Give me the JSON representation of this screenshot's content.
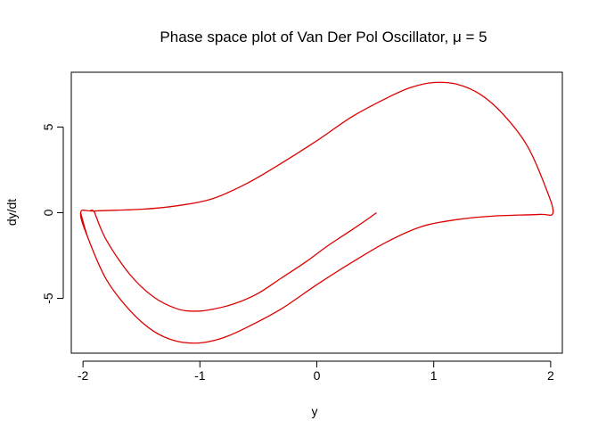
{
  "chart_data": {
    "type": "line",
    "title": "Phase space plot of Van Der Pol Oscillator, μ = 5",
    "xlabel": "y",
    "ylabel": "dy/dt",
    "xlim": [
      -2.1,
      2.1
    ],
    "ylim": [
      -8.2,
      8.2
    ],
    "xticks": [
      -2,
      -1,
      0,
      1,
      2
    ],
    "yticks": [
      -5,
      0,
      5
    ],
    "grid": false,
    "line_color": "#dd0000",
    "series": [
      {
        "values": [
          {
            "x": 0.51,
            "y": 0.0
          },
          {
            "x": 0.45,
            "y": -0.3
          },
          {
            "x": 0.3,
            "y": -1.0
          },
          {
            "x": 0.1,
            "y": -1.9
          },
          {
            "x": -0.1,
            "y": -2.9
          },
          {
            "x": -0.3,
            "y": -3.8
          },
          {
            "x": -0.5,
            "y": -4.7
          },
          {
            "x": -0.7,
            "y": -5.3
          },
          {
            "x": -0.9,
            "y": -5.65
          },
          {
            "x": -1.05,
            "y": -5.75
          },
          {
            "x": -1.2,
            "y": -5.6
          },
          {
            "x": -1.4,
            "y": -4.9
          },
          {
            "x": -1.6,
            "y": -3.6
          },
          {
            "x": -1.8,
            "y": -1.6
          },
          {
            "x": -1.9,
            "y": 0.0
          },
          {
            "x": -1.9,
            "y": 0.1
          },
          {
            "x": -1.5,
            "y": 0.2
          },
          {
            "x": -1.2,
            "y": 0.4
          },
          {
            "x": -0.9,
            "y": 0.8
          },
          {
            "x": -0.6,
            "y": 1.7
          },
          {
            "x": -0.3,
            "y": 2.9
          },
          {
            "x": 0.0,
            "y": 4.2
          },
          {
            "x": 0.3,
            "y": 5.6
          },
          {
            "x": 0.6,
            "y": 6.7
          },
          {
            "x": 0.8,
            "y": 7.3
          },
          {
            "x": 1.0,
            "y": 7.6
          },
          {
            "x": 1.2,
            "y": 7.5
          },
          {
            "x": 1.4,
            "y": 6.9
          },
          {
            "x": 1.6,
            "y": 5.7
          },
          {
            "x": 1.8,
            "y": 3.9
          },
          {
            "x": 1.95,
            "y": 1.6
          },
          {
            "x": 2.02,
            "y": 0.0
          },
          {
            "x": 1.9,
            "y": -0.1
          },
          {
            "x": 1.5,
            "y": -0.2
          },
          {
            "x": 1.2,
            "y": -0.4
          },
          {
            "x": 0.9,
            "y": -0.8
          },
          {
            "x": 0.6,
            "y": -1.7
          },
          {
            "x": 0.3,
            "y": -2.9
          },
          {
            "x": 0.0,
            "y": -4.2
          },
          {
            "x": -0.3,
            "y": -5.6
          },
          {
            "x": -0.6,
            "y": -6.7
          },
          {
            "x": -0.8,
            "y": -7.3
          },
          {
            "x": -1.0,
            "y": -7.6
          },
          {
            "x": -1.2,
            "y": -7.5
          },
          {
            "x": -1.4,
            "y": -6.9
          },
          {
            "x": -1.6,
            "y": -5.7
          },
          {
            "x": -1.8,
            "y": -3.9
          },
          {
            "x": -1.95,
            "y": -1.6
          },
          {
            "x": -2.02,
            "y": 0.0
          },
          {
            "x": -1.9,
            "y": 0.1
          },
          {
            "x": -1.5,
            "y": 0.2
          },
          {
            "x": -1.2,
            "y": 0.4
          },
          {
            "x": -0.9,
            "y": 0.8
          },
          {
            "x": -0.6,
            "y": 1.7
          },
          {
            "x": -0.3,
            "y": 2.9
          },
          {
            "x": 0.0,
            "y": 4.2
          },
          {
            "x": 0.3,
            "y": 5.6
          },
          {
            "x": 0.6,
            "y": 6.7
          },
          {
            "x": 0.8,
            "y": 7.3
          },
          {
            "x": 1.0,
            "y": 7.6
          },
          {
            "x": 1.2,
            "y": 7.5
          },
          {
            "x": 1.4,
            "y": 6.9
          },
          {
            "x": 1.6,
            "y": 5.7
          },
          {
            "x": 1.8,
            "y": 3.9
          },
          {
            "x": 1.95,
            "y": 1.6
          },
          {
            "x": 2.02,
            "y": 0.0
          },
          {
            "x": 1.9,
            "y": -0.1
          },
          {
            "x": 1.5,
            "y": -0.2
          },
          {
            "x": 1.2,
            "y": -0.4
          },
          {
            "x": 0.9,
            "y": -0.8
          },
          {
            "x": 0.6,
            "y": -1.7
          },
          {
            "x": 0.3,
            "y": -2.9
          },
          {
            "x": 0.0,
            "y": -4.2
          },
          {
            "x": -0.3,
            "y": -5.6
          },
          {
            "x": -0.6,
            "y": -6.7
          },
          {
            "x": -0.8,
            "y": -7.3
          },
          {
            "x": -1.0,
            "y": -7.6
          },
          {
            "x": -1.2,
            "y": -7.5
          },
          {
            "x": -1.4,
            "y": -6.9
          },
          {
            "x": -1.6,
            "y": -5.7
          },
          {
            "x": -1.8,
            "y": -3.9
          },
          {
            "x": -1.95,
            "y": -1.6
          },
          {
            "x": -2.02,
            "y": 0.0
          }
        ]
      }
    ]
  }
}
